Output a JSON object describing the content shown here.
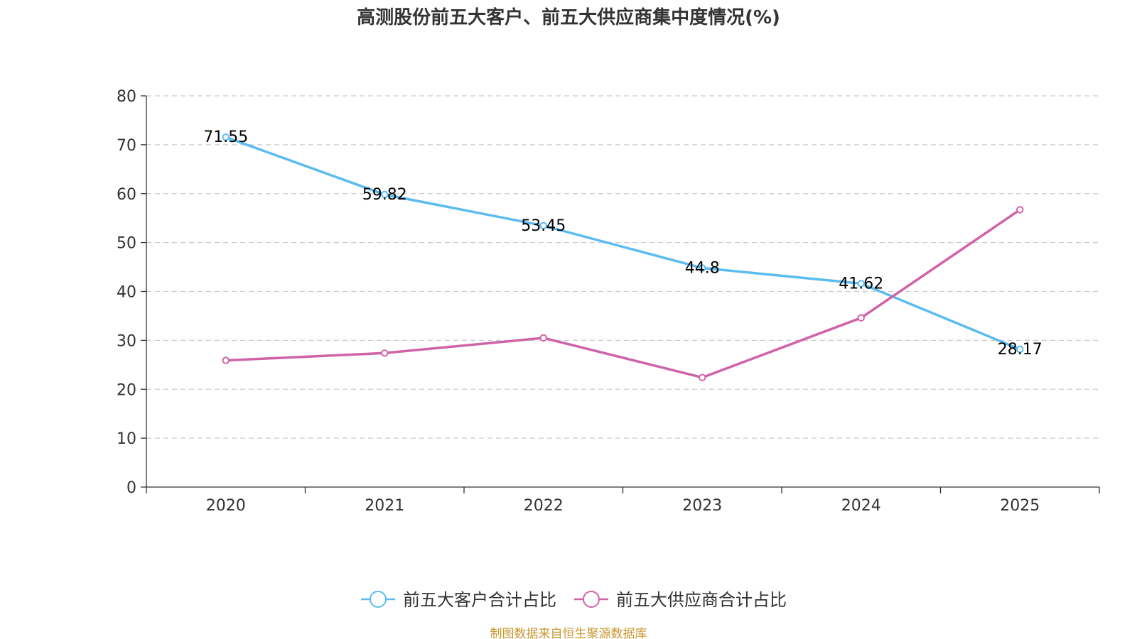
{
  "chart_data": {
    "type": "line",
    "title": "高测股份前五大客户、前五大供应商集中度情况(%)",
    "categories": [
      "2020",
      "2021",
      "2022",
      "2023",
      "2024",
      "2025"
    ],
    "ylim": [
      0,
      80
    ],
    "yticks": [
      0,
      10,
      20,
      30,
      40,
      50,
      60,
      70,
      80
    ],
    "grid": true,
    "legend_position": "bottom-center",
    "series": [
      {
        "name": "前五大客户合计占比",
        "color": "#5bbcf0",
        "values": [
          71.55,
          59.82,
          53.45,
          44.8,
          41.62,
          28.17
        ],
        "labels": [
          "71.55",
          "59.82",
          "53.45",
          "44.8",
          "41.62",
          "28.17"
        ],
        "show_labels": true
      },
      {
        "name": "前五大供应商合计占比",
        "color": "#d063a8",
        "values": [
          25.9,
          27.4,
          30.5,
          22.4,
          34.6,
          56.7
        ],
        "show_labels": false
      }
    ],
    "source": "制图数据来自恒生聚源数据库",
    "source_color": "#c8962e"
  }
}
